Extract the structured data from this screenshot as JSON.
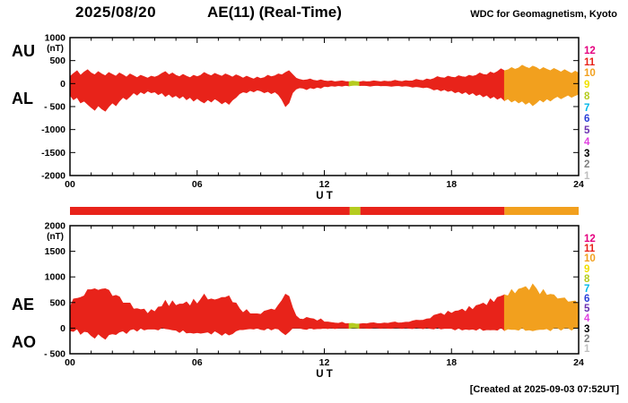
{
  "header": {
    "date": "2025/08/20",
    "title": "AE(11) (Real-Time)",
    "source": "WDC for Geomagnetism, Kyoto"
  },
  "footer": {
    "created": "[Created at 2025-09-03 07:52UT]"
  },
  "chart_data": {
    "type": "area",
    "title": "AE(11) (Real-Time) 2025/08/20",
    "xlabel": "U T",
    "y_unit": "(nT)",
    "x_range_hours": [
      0,
      24
    ],
    "x_step_hours": 0.16667,
    "xticks": [
      {
        "h": 0,
        "label": "00"
      },
      {
        "h": 6,
        "label": "06"
      },
      {
        "h": 12,
        "label": "12"
      },
      {
        "h": 18,
        "label": "18"
      },
      {
        "h": 24,
        "label": "24"
      }
    ],
    "color_segments": [
      {
        "start": 0,
        "end": 13.2,
        "stations": 11,
        "color": "#e8231a"
      },
      {
        "start": 13.2,
        "end": 13.7,
        "stations": 8,
        "color": "#b5cc1f"
      },
      {
        "start": 13.7,
        "end": 20.5,
        "stations": 11,
        "color": "#e8231a"
      },
      {
        "start": 20.5,
        "end": 24,
        "stations": 10,
        "color": "#f2a01e"
      }
    ],
    "legend_station_counts": [
      {
        "label": "12",
        "color": "#e5007f"
      },
      {
        "label": "11",
        "color": "#e8231a"
      },
      {
        "label": "10",
        "color": "#f2a01e"
      },
      {
        "label": "9",
        "color": "#f0e000"
      },
      {
        "label": "8",
        "color": "#b5cc1f"
      },
      {
        "label": "7",
        "color": "#00b7e8"
      },
      {
        "label": "6",
        "color": "#2b3fd8"
      },
      {
        "label": "5",
        "color": "#6a30b0"
      },
      {
        "label": "4",
        "color": "#e040e0"
      },
      {
        "label": "3",
        "color": "#000000"
      },
      {
        "label": "2",
        "color": "#7f7f7f"
      },
      {
        "label": "1",
        "color": "#bfbfbf"
      }
    ],
    "panels": [
      {
        "name": "AU-AL panel",
        "ylim": [
          -2000,
          1000
        ],
        "yticks": [
          {
            "v": 1000,
            "label": "1000"
          },
          {
            "v": 500,
            "label": "500"
          },
          {
            "v": 0,
            "label": "0"
          },
          {
            "v": -500,
            "label": "- 500"
          },
          {
            "v": -1000,
            "label": "-1000"
          },
          {
            "v": -1500,
            "label": "-1500"
          },
          {
            "v": -2000,
            "label": "-2000"
          }
        ],
        "series": [
          {
            "name": "AU",
            "values": [
              150,
              220,
              280,
              180,
              250,
              300,
              230,
              190,
              260,
              210,
              170,
              240,
              200,
              160,
              230,
              190,
              140,
              210,
              170,
              130,
              180,
              150,
              120,
              160,
              140,
              170,
              220,
              260,
              190,
              230,
              180,
              150,
              200,
              160,
              130,
              180,
              150,
              180,
              240,
              200,
              170,
              220,
              190,
              160,
              210,
              180,
              140,
              190,
              160,
              120,
              160,
              130,
              100,
              140,
              110,
              130,
              180,
              150,
              170,
              210,
              190,
              240,
              280,
              200,
              120,
              90,
              70,
              80,
              100,
              70,
              60,
              80,
              60,
              50,
              60,
              40,
              50,
              60,
              45,
              40,
              55,
              45,
              35,
              50,
              40,
              45,
              60,
              50,
              40,
              55,
              45,
              50,
              70,
              55,
              45,
              65,
              55,
              60,
              90,
              75,
              65,
              100,
              85,
              110,
              150,
              130,
              120,
              160,
              140,
              130,
              170,
              150,
              140,
              180,
              160,
              180,
              230,
              200,
              190,
              250,
              220,
              260,
              320,
              280,
              300,
              350,
              310,
              340,
              400,
              360,
              330,
              380,
              350,
              300,
              350,
              310,
              280,
              330,
              290,
              250,
              300,
              260,
              220,
              270,
              230
            ]
          },
          {
            "name": "AL",
            "values": [
              -250,
              -350,
              -300,
              -420,
              -380,
              -450,
              -520,
              -580,
              -480,
              -550,
              -600,
              -500,
              -420,
              -480,
              -380,
              -300,
              -350,
              -280,
              -200,
              -250,
              -180,
              -220,
              -160,
              -200,
              -180,
              -240,
              -200,
              -280,
              -230,
              -300,
              -260,
              -320,
              -270,
              -350,
              -300,
              -380,
              -320,
              -380,
              -420,
              -350,
              -400,
              -330,
              -380,
              -440,
              -390,
              -450,
              -360,
              -300,
              -220,
              -180,
              -200,
              -150,
              -180,
              -140,
              -160,
              -200,
              -170,
              -220,
              -180,
              -240,
              -350,
              -500,
              -420,
              -200,
              -120,
              -90,
              -100,
              -130,
              -90,
              -110,
              -80,
              -100,
              -60,
              -70,
              -50,
              -60,
              -45,
              -55,
              -40,
              -50,
              -40,
              -35,
              -45,
              -40,
              -45,
              -55,
              -45,
              -40,
              -50,
              -45,
              -50,
              -60,
              -50,
              -45,
              -60,
              -50,
              -60,
              -80,
              -65,
              -75,
              -90,
              -80,
              -100,
              -140,
              -120,
              -160,
              -130,
              -170,
              -150,
              -200,
              -170,
              -220,
              -180,
              -240,
              -200,
              -260,
              -230,
              -290,
              -250,
              -320,
              -280,
              -340,
              -300,
              -370,
              -330,
              -400,
              -360,
              -420,
              -380,
              -450,
              -400,
              -480,
              -420,
              -350,
              -400,
              -330,
              -380,
              -320,
              -280,
              -330,
              -290,
              -250,
              -300,
              -260,
              -230
            ]
          }
        ]
      },
      {
        "name": "AE-AO panel",
        "ylim": [
          -500,
          2000
        ],
        "yticks": [
          {
            "v": 2000,
            "label": "2000"
          },
          {
            "v": 1500,
            "label": "1500"
          },
          {
            "v": 1000,
            "label": "1000"
          },
          {
            "v": 500,
            "label": "500"
          },
          {
            "v": 0,
            "label": "0"
          },
          {
            "v": -500,
            "label": "- 500"
          }
        ],
        "series": [
          {
            "name": "AE",
            "values": [
              400,
              570,
              580,
              600,
              630,
              750,
              750,
              770,
              740,
              760,
              770,
              740,
              620,
              640,
              610,
              490,
              490,
              490,
              370,
              380,
              360,
              370,
              280,
              360,
              320,
              410,
              420,
              540,
              420,
              530,
              440,
              470,
              470,
              510,
              430,
              560,
              470,
              560,
              660,
              550,
              570,
              550,
              570,
              600,
              600,
              630,
              500,
              490,
              380,
              300,
              360,
              280,
              280,
              280,
              270,
              330,
              350,
              370,
              350,
              450,
              540,
              660,
              620,
              400,
              240,
              180,
              170,
              210,
              190,
              180,
              140,
              180,
              120,
              120,
              110,
              100,
              95,
              115,
              85,
              90,
              95,
              80,
              80,
              90,
              85,
              100,
              105,
              90,
              90,
              100,
              95,
              110,
              120,
              100,
              105,
              115,
              115,
              140,
              155,
              150,
              155,
              180,
              185,
              250,
              270,
              290,
              250,
              330,
              290,
              330,
              340,
              370,
              320,
              420,
              360,
              440,
              460,
              490,
              440,
              570,
              500,
              600,
              620,
              650,
              630,
              750,
              670,
              760,
              780,
              810,
              730,
              860,
              770,
              650,
              750,
              640,
              660,
              650,
              570,
              580,
              590,
              510,
              520,
              530,
              460
            ]
          },
          {
            "name": "AO",
            "values": [
              -50,
              -65,
              -10,
              -120,
              -65,
              -75,
              -145,
              -195,
              -110,
              -170,
              -215,
              -130,
              -110,
              -125,
              -75,
              -55,
              -105,
              -35,
              -15,
              -60,
              0,
              -35,
              -20,
              -20,
              -20,
              -35,
              10,
              -10,
              -20,
              -35,
              -40,
              -85,
              -35,
              -95,
              -85,
              -100,
              -85,
              -100,
              -90,
              -75,
              -115,
              -55,
              -95,
              -140,
              -90,
              -135,
              -110,
              -55,
              -30,
              -30,
              -20,
              -10,
              -20,
              0,
              -25,
              -35,
              5,
              -35,
              -5,
              -15,
              -80,
              -130,
              -70,
              0,
              0,
              0,
              -15,
              -25,
              5,
              -20,
              -10,
              -10,
              0,
              -10,
              5,
              -10,
              3,
              3,
              3,
              -5,
              8,
              5,
              -5,
              5,
              -3,
              -5,
              8,
              5,
              -5,
              5,
              -3,
              -5,
              10,
              5,
              -8,
              8,
              -3,
              -10,
              13,
              0,
              -13,
              10,
              -8,
              -15,
              15,
              -15,
              -5,
              -5,
              -5,
              -35,
              0,
              -35,
              -20,
              -30,
              -20,
              -40,
              0,
              -45,
              -30,
              -35,
              -30,
              -40,
              10,
              -45,
              -15,
              -25,
              -25,
              -40,
              10,
              -45,
              -35,
              -50,
              -35,
              -25,
              -25,
              -10,
              -50,
              5,
              5,
              -40,
              5,
              5,
              -40,
              5,
              0
            ]
          }
        ]
      }
    ]
  }
}
